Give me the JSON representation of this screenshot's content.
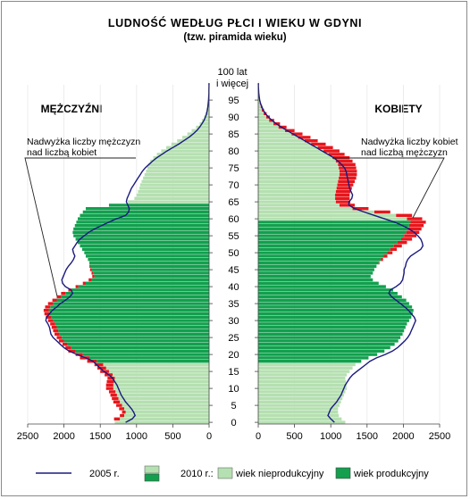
{
  "chart_data": {
    "type": "bar",
    "orientation": "horizontal-pyramid",
    "title": "LUDNOŚĆ  WEDŁUG  PŁCI  I  WIEKU  W  GDYNI",
    "subtitle": "(tzw. piramida wieku)",
    "left_label": "MĘŻCZYŹNI",
    "right_label": "KOBIETY",
    "age_top_label_line1": "100 lat",
    "age_top_label_line2": "i więcej",
    "annotation_left_line1": "Nadwyżka liczby mężczyzn",
    "annotation_left_line2": "nad liczbą kobiet",
    "annotation_right_line1": "Nadwyżka liczby kobiet",
    "annotation_right_line2": "nad liczbą mężczyzn",
    "x_ticks_left": [
      "2500",
      "2000",
      "1500",
      "1000",
      "500",
      "0"
    ],
    "x_ticks_right": [
      "0",
      "500",
      "1000",
      "1500",
      "2000",
      "2500"
    ],
    "xlim": [
      0,
      2500
    ],
    "age_ticks": [
      "0",
      "5",
      "10",
      "15",
      "20",
      "25",
      "30",
      "35",
      "40",
      "45",
      "50",
      "55",
      "60",
      "65",
      "70",
      "75",
      "80",
      "85",
      "90",
      "95"
    ],
    "age_range": [
      0,
      100
    ],
    "working_age": {
      "male": [
        18,
        64
      ],
      "female": [
        18,
        59
      ]
    },
    "colors": {
      "nonworking": "#b5e0b1",
      "working": "#12a04e",
      "surplus": "#e8161c",
      "line_2005": "#1a1a7e",
      "grid": "#e8e8e8"
    },
    "legend": {
      "line_2005": "2005 r.",
      "year_2010": "2010 r.:",
      "nonworking": "wiek nieprodukcyjny",
      "working": "wiek produkcyjny"
    },
    "series": [
      {
        "name": "2010 r.",
        "male": [
          1300,
          1230,
          1170,
          1150,
          1170,
          1200,
          1230,
          1250,
          1270,
          1290,
          1320,
          1320,
          1310,
          1300,
          1330,
          1380,
          1420,
          1460,
          1550,
          1650,
          1740,
          1840,
          1900,
          1950,
          2000,
          2030,
          2060,
          2080,
          2100,
          2120,
          2150,
          2180,
          2200,
          2210,
          2190,
          2150,
          2100,
          2040,
          1980,
          1900,
          1800,
          1700,
          1620,
          1580,
          1600,
          1620,
          1640,
          1650,
          1670,
          1700,
          1720,
          1750,
          1780,
          1810,
          1840,
          1870,
          1880,
          1870,
          1850,
          1830,
          1810,
          1780,
          1740,
          1700,
          1380,
          1120,
          1030,
          1000,
          980,
          960,
          950,
          930,
          910,
          890,
          870,
          850,
          830,
          810,
          770,
          720,
          660,
          590,
          520,
          440,
          370,
          300,
          240,
          180,
          130,
          100,
          70,
          50,
          35,
          25,
          15,
          10,
          7,
          5,
          4,
          3,
          2
        ],
        "female": [
          1200,
          1150,
          1110,
          1100,
          1100,
          1120,
          1140,
          1160,
          1180,
          1200,
          1220,
          1220,
          1210,
          1200,
          1220,
          1260,
          1300,
          1340,
          1420,
          1520,
          1640,
          1740,
          1820,
          1880,
          1930,
          1960,
          1990,
          2010,
          2030,
          2050,
          2080,
          2110,
          2130,
          2140,
          2120,
          2080,
          2040,
          1980,
          1920,
          1860,
          1760,
          1660,
          1580,
          1550,
          1580,
          1600,
          1630,
          1660,
          1690,
          1730,
          1780,
          1820,
          1870,
          1920,
          1970,
          2010,
          2040,
          2060,
          2080,
          2100,
          2050,
          1900,
          1600,
          1300,
          1120,
          1070,
          1060,
          1060,
          1070,
          1080,
          1090,
          1100,
          1110,
          1120,
          1120,
          1110,
          1100,
          1070,
          1030,
          970,
          900,
          820,
          730,
          640,
          550,
          460,
          370,
          280,
          210,
          150,
          110,
          75,
          50,
          35,
          22,
          14,
          9,
          6,
          4,
          3,
          2
        ],
        "surplus_male": [
          0,
          80,
          60,
          50,
          70,
          80,
          90,
          90,
          90,
          90,
          100,
          100,
          100,
          100,
          110,
          120,
          120,
          120,
          130,
          130,
          100,
          100,
          80,
          70,
          70,
          70,
          70,
          70,
          70,
          70,
          70,
          70,
          70,
          70,
          70,
          70,
          60,
          60,
          60,
          40,
          40,
          40,
          40,
          30,
          20,
          20,
          10,
          0,
          0,
          0,
          0,
          0,
          0,
          0,
          0,
          0,
          0,
          0,
          0,
          0,
          0,
          0,
          0,
          0,
          0,
          0,
          0,
          0,
          0,
          0,
          0,
          0,
          0,
          0,
          0,
          0,
          0,
          0,
          0,
          0,
          0,
          0,
          0,
          0,
          0,
          0,
          0,
          0,
          0,
          0,
          0,
          0,
          0,
          0,
          0,
          0,
          0,
          0,
          0,
          0,
          0
        ],
        "surplus_female": [
          0,
          0,
          0,
          0,
          0,
          0,
          0,
          0,
          0,
          0,
          0,
          0,
          0,
          0,
          0,
          0,
          0,
          0,
          0,
          0,
          0,
          0,
          0,
          0,
          0,
          0,
          0,
          0,
          0,
          0,
          0,
          0,
          0,
          0,
          0,
          0,
          0,
          0,
          0,
          0,
          0,
          0,
          0,
          0,
          0,
          0,
          0,
          10,
          30,
          50,
          70,
          90,
          110,
          130,
          150,
          170,
          180,
          190,
          200,
          210,
          210,
          220,
          220,
          220,
          210,
          200,
          200,
          200,
          200,
          210,
          220,
          230,
          240,
          240,
          240,
          240,
          240,
          230,
          230,
          220,
          220,
          210,
          200,
          180,
          170,
          150,
          130,
          110,
          90,
          70,
          50,
          40,
          30,
          20,
          14,
          10,
          6,
          4,
          3,
          2,
          1
        ]
      },
      {
        "name": "2005 r.",
        "type": "line",
        "male": [
          1150,
          1060,
          1020,
          1040,
          1070,
          1110,
          1150,
          1180,
          1210,
          1230,
          1250,
          1270,
          1300,
          1330,
          1380,
          1450,
          1500,
          1550,
          1600,
          1700,
          1820,
          1930,
          2000,
          2050,
          2100,
          2150,
          2180,
          2190,
          2200,
          2220,
          2250,
          2240,
          2200,
          2160,
          2100,
          2050,
          1980,
          1920,
          1880,
          1900,
          1980,
          2020,
          2030,
          2010,
          1990,
          1970,
          1940,
          1900,
          1870,
          1850,
          1870,
          1880,
          1850,
          1820,
          1780,
          1720,
          1660,
          1580,
          1480,
          1380,
          1280,
          1150,
          1110,
          1100,
          1120,
          1140,
          1130,
          1110,
          1090,
          1070,
          1040,
          1010,
          980,
          950,
          920,
          880,
          830,
          780,
          720,
          650,
          580,
          500,
          420,
          350,
          280,
          220,
          170,
          130,
          100,
          70,
          50,
          35,
          25,
          17,
          12,
          8,
          5,
          3,
          2,
          1,
          1
        ],
        "female": [
          1050,
          1000,
          960,
          980,
          1000,
          1040,
          1080,
          1110,
          1140,
          1160,
          1180,
          1200,
          1230,
          1260,
          1300,
          1360,
          1420,
          1480,
          1540,
          1630,
          1750,
          1850,
          1920,
          1970,
          2020,
          2060,
          2090,
          2110,
          2130,
          2150,
          2170,
          2150,
          2110,
          2070,
          2020,
          1960,
          1900,
          1840,
          1800,
          1820,
          1900,
          1960,
          1990,
          2000,
          2010,
          2010,
          2030,
          2040,
          2060,
          2100,
          2170,
          2240,
          2270,
          2260,
          2240,
          2200,
          2150,
          2080,
          1990,
          1880,
          1740,
          1600,
          1460,
          1330,
          1250,
          1250,
          1290,
          1300,
          1280,
          1260,
          1250,
          1240,
          1230,
          1220,
          1210,
          1190,
          1150,
          1100,
          1040,
          960,
          880,
          800,
          720,
          640,
          560,
          480,
          400,
          320,
          250,
          190,
          140,
          100,
          70,
          50,
          32,
          20,
          13,
          8,
          5,
          3,
          2
        ]
      }
    ]
  }
}
